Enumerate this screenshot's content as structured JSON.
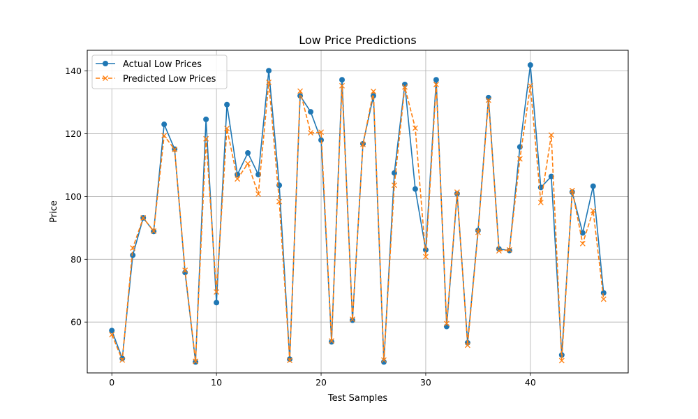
{
  "chart_data": {
    "type": "line",
    "title": "Low Price Predictions",
    "xlabel": "Test Samples",
    "ylabel": "Price",
    "xlim": [
      -2.35,
      49.35
    ],
    "ylim": [
      43.8,
      146.6
    ],
    "xticks": [
      0,
      10,
      20,
      30,
      40
    ],
    "yticks": [
      60,
      80,
      100,
      120,
      140
    ],
    "grid": true,
    "legend_position": "upper-left",
    "x": [
      0,
      1,
      2,
      3,
      4,
      5,
      6,
      7,
      8,
      9,
      10,
      11,
      12,
      13,
      14,
      15,
      16,
      17,
      18,
      19,
      20,
      21,
      22,
      23,
      24,
      25,
      26,
      27,
      28,
      29,
      30,
      31,
      32,
      33,
      34,
      35,
      36,
      37,
      38,
      39,
      40,
      41,
      42,
      43,
      44,
      45,
      46,
      47
    ],
    "series": [
      {
        "name": "Actual Low Prices",
        "color": "#1f77b4",
        "line_style": "solid",
        "marker": "circle",
        "values": [
          57.3,
          48.4,
          81.3,
          93.2,
          88.9,
          123.0,
          115.1,
          75.8,
          47.3,
          124.6,
          66.2,
          129.3,
          107.0,
          113.9,
          107.0,
          140.1,
          103.6,
          48.2,
          132.1,
          127.0,
          118.0,
          53.7,
          137.2,
          60.6,
          116.8,
          132.1,
          47.3,
          107.5,
          135.7,
          102.4,
          83.0,
          137.2,
          58.6,
          100.9,
          53.4,
          89.2,
          131.5,
          83.3,
          82.8,
          115.8,
          141.9,
          102.9,
          106.4,
          49.5,
          101.4,
          88.4,
          103.3,
          69.3
        ]
      },
      {
        "name": "Predicted Low Prices",
        "color": "#ff7f0e",
        "line_style": "dashed",
        "marker": "x",
        "values": [
          56.0,
          47.9,
          83.6,
          93.2,
          89.0,
          119.4,
          115.0,
          76.5,
          47.5,
          118.4,
          69.6,
          121.7,
          105.6,
          110.5,
          100.8,
          136.4,
          98.4,
          47.8,
          133.6,
          120.3,
          120.5,
          54.0,
          135.3,
          60.9,
          116.6,
          133.5,
          47.9,
          103.6,
          134.9,
          121.8,
          80.8,
          135.7,
          59.5,
          101.4,
          52.6,
          88.6,
          130.7,
          82.7,
          83.0,
          112.0,
          135.3,
          98.1,
          119.6,
          47.7,
          101.9,
          85.0,
          95.5,
          67.3
        ]
      }
    ]
  }
}
